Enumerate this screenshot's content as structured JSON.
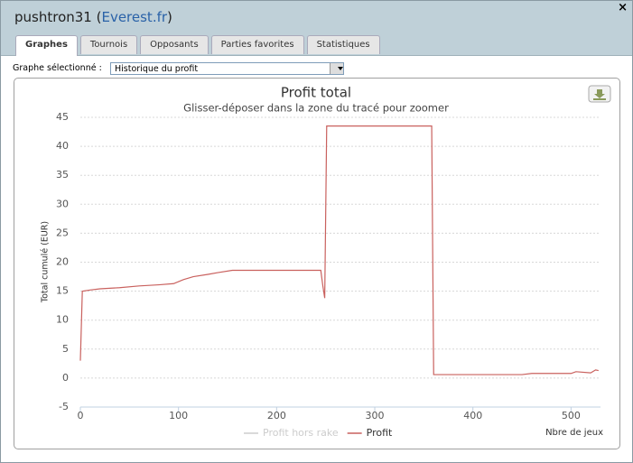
{
  "window": {
    "title": [
      "pushtron31 (",
      "Everest.fr",
      ")"
    ],
    "close": "×"
  },
  "tabs": [
    "Graphes",
    "Tournois",
    "Opposants",
    "Parties favorites",
    "Statistiques"
  ],
  "active_tab": 0,
  "selector": {
    "label": "Graphe sélectionné :",
    "value": "Historique du profit"
  },
  "chart_data": {
    "type": "line",
    "title": "Profit total",
    "subtitle": "Glisser-déposer dans la zone du tracé pour zoomer",
    "x_label": "Nbre de jeux",
    "y_label": "Total cumulé (EUR)",
    "x": [
      0,
      2,
      10,
      20,
      40,
      60,
      80,
      95,
      105,
      115,
      130,
      140,
      155,
      200,
      245,
      247,
      249,
      251,
      300,
      358,
      360,
      400,
      450,
      460,
      500,
      505,
      520,
      525,
      528
    ],
    "series": [
      {
        "name": "Profit hors rake",
        "color": "#cccccc",
        "visible": false,
        "values": [
          null,
          null,
          null,
          null,
          null,
          null,
          null,
          null,
          null,
          null,
          null,
          null,
          null,
          null,
          null,
          null,
          null,
          null,
          null,
          null,
          null,
          null,
          null,
          null,
          null,
          null,
          null,
          null,
          null
        ]
      },
      {
        "name": "Profit",
        "color": "#c9615e",
        "visible": true,
        "values": [
          3,
          15,
          15.2,
          15.4,
          15.6,
          15.9,
          16.1,
          16.3,
          17,
          17.5,
          17.9,
          18.2,
          18.6,
          18.6,
          18.6,
          16,
          13.8,
          43.5,
          43.5,
          43.5,
          0.6,
          0.6,
          0.6,
          0.8,
          0.8,
          1.1,
          0.9,
          1.4,
          1.3
        ]
      }
    ],
    "xlim": [
      0,
      530
    ],
    "xticks": [
      0,
      100,
      200,
      300,
      400,
      500
    ],
    "ylim": [
      -5,
      45
    ],
    "yticks": [
      -5,
      0,
      5,
      10,
      15,
      20,
      25,
      30,
      35,
      40,
      45
    ],
    "grid": true,
    "legend": "bottom"
  }
}
